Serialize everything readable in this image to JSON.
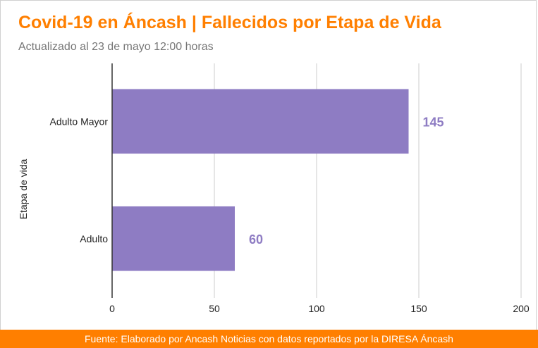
{
  "header": {
    "title": "Covid-19 en Áncash | Fallecidos por Etapa de Vida",
    "subtitle": "Actualizado al 23 de mayo 12:00 horas"
  },
  "footer": {
    "source": "Fuente: Elaborado por Ancash Noticias con datos reportados por la DIRESA Áncash"
  },
  "chart_data": {
    "type": "bar",
    "orientation": "horizontal",
    "title": "Covid-19 en Áncash | Fallecidos por Etapa de Vida",
    "subtitle": "Actualizado al 23 de mayo 12:00 horas",
    "ylabel": "Etapa de vida",
    "xlabel": "",
    "categories": [
      "Adulto Mayor",
      "Adulto"
    ],
    "values": [
      145,
      60
    ],
    "xlim": [
      0,
      200
    ],
    "xticks": [
      0,
      50,
      100,
      150,
      200
    ],
    "grid": true,
    "legend": "none",
    "bar_color": "#8e7cc3",
    "label_color": "#8e7cc3"
  }
}
